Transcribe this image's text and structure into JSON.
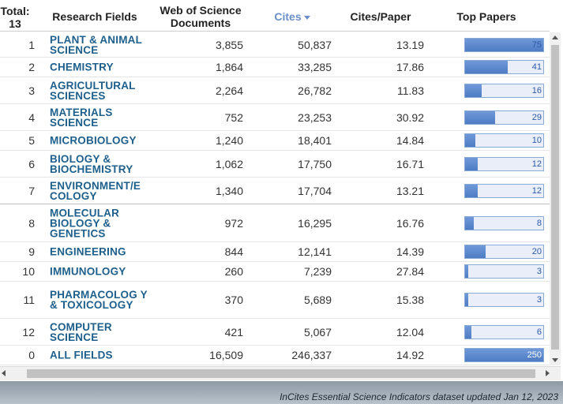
{
  "header": {
    "total_label": "Total:",
    "total_count": "13",
    "fields": "Research Fields",
    "wos": "Web of Science Documents",
    "cites": "Cites",
    "cpp": "Cites/Paper",
    "top": "Top Papers"
  },
  "colors": {
    "accent": "#6a8fc8",
    "link": "#1e5f8c",
    "bar": "#5b88cc"
  },
  "rows": [
    {
      "idx": "1",
      "field": "PLANT & ANIMAL SCIENCE",
      "docs": "3,855",
      "cites": "50,837",
      "cpp": "13.19",
      "top": "75",
      "top_val": 75
    },
    {
      "idx": "2",
      "field": "CHEMISTRY",
      "docs": "1,864",
      "cites": "33,285",
      "cpp": "17.86",
      "top": "41",
      "top_val": 41
    },
    {
      "idx": "3",
      "field": "AGRICULTURAL SCIENCES",
      "docs": "2,264",
      "cites": "26,782",
      "cpp": "11.83",
      "top": "16",
      "top_val": 16
    },
    {
      "idx": "4",
      "field": "MATERIALS SCIENCE",
      "docs": "752",
      "cites": "23,253",
      "cpp": "30.92",
      "top": "29",
      "top_val": 29
    },
    {
      "idx": "5",
      "field": "MICROBIOLOGY",
      "docs": "1,240",
      "cites": "18,401",
      "cpp": "14.84",
      "top": "10",
      "top_val": 10
    },
    {
      "idx": "6",
      "field": "BIOLOGY & BIOCHEMISTRY",
      "docs": "1,062",
      "cites": "17,750",
      "cpp": "16.71",
      "top": "12",
      "top_val": 12
    },
    {
      "idx": "7",
      "field": "ENVIRONMENT/E COLOGY",
      "docs": "1,340",
      "cites": "17,704",
      "cpp": "13.21",
      "top": "12",
      "top_val": 12
    },
    {
      "idx": "8",
      "field": "MOLECULAR BIOLOGY & GENETICS",
      "docs": "972",
      "cites": "16,295",
      "cpp": "16.76",
      "top": "8",
      "top_val": 8
    },
    {
      "idx": "9",
      "field": "ENGINEERING",
      "docs": "844",
      "cites": "12,141",
      "cpp": "14.39",
      "top": "20",
      "top_val": 20
    },
    {
      "idx": "10",
      "field": "IMMUNOLOGY",
      "docs": "260",
      "cites": "7,239",
      "cpp": "27.84",
      "top": "3",
      "top_val": 3
    },
    {
      "idx": "11",
      "field": "PHARMACOLOG Y & TOXICOLOGY",
      "docs": "370",
      "cites": "5,689",
      "cpp": "15.38",
      "top": "3",
      "top_val": 3
    },
    {
      "idx": "12",
      "field": "COMPUTER SCIENCE",
      "docs": "421",
      "cites": "5,067",
      "cpp": "12.04",
      "top": "6",
      "top_val": 6
    },
    {
      "idx": "0",
      "field": "ALL FIELDS",
      "docs": "16,509",
      "cites": "246,337",
      "cpp": "14.92",
      "top": "250",
      "top_val": 250
    }
  ],
  "footer": {
    "text": "InCites Essential Science Indicators dataset updated Jan 12, 2023"
  }
}
